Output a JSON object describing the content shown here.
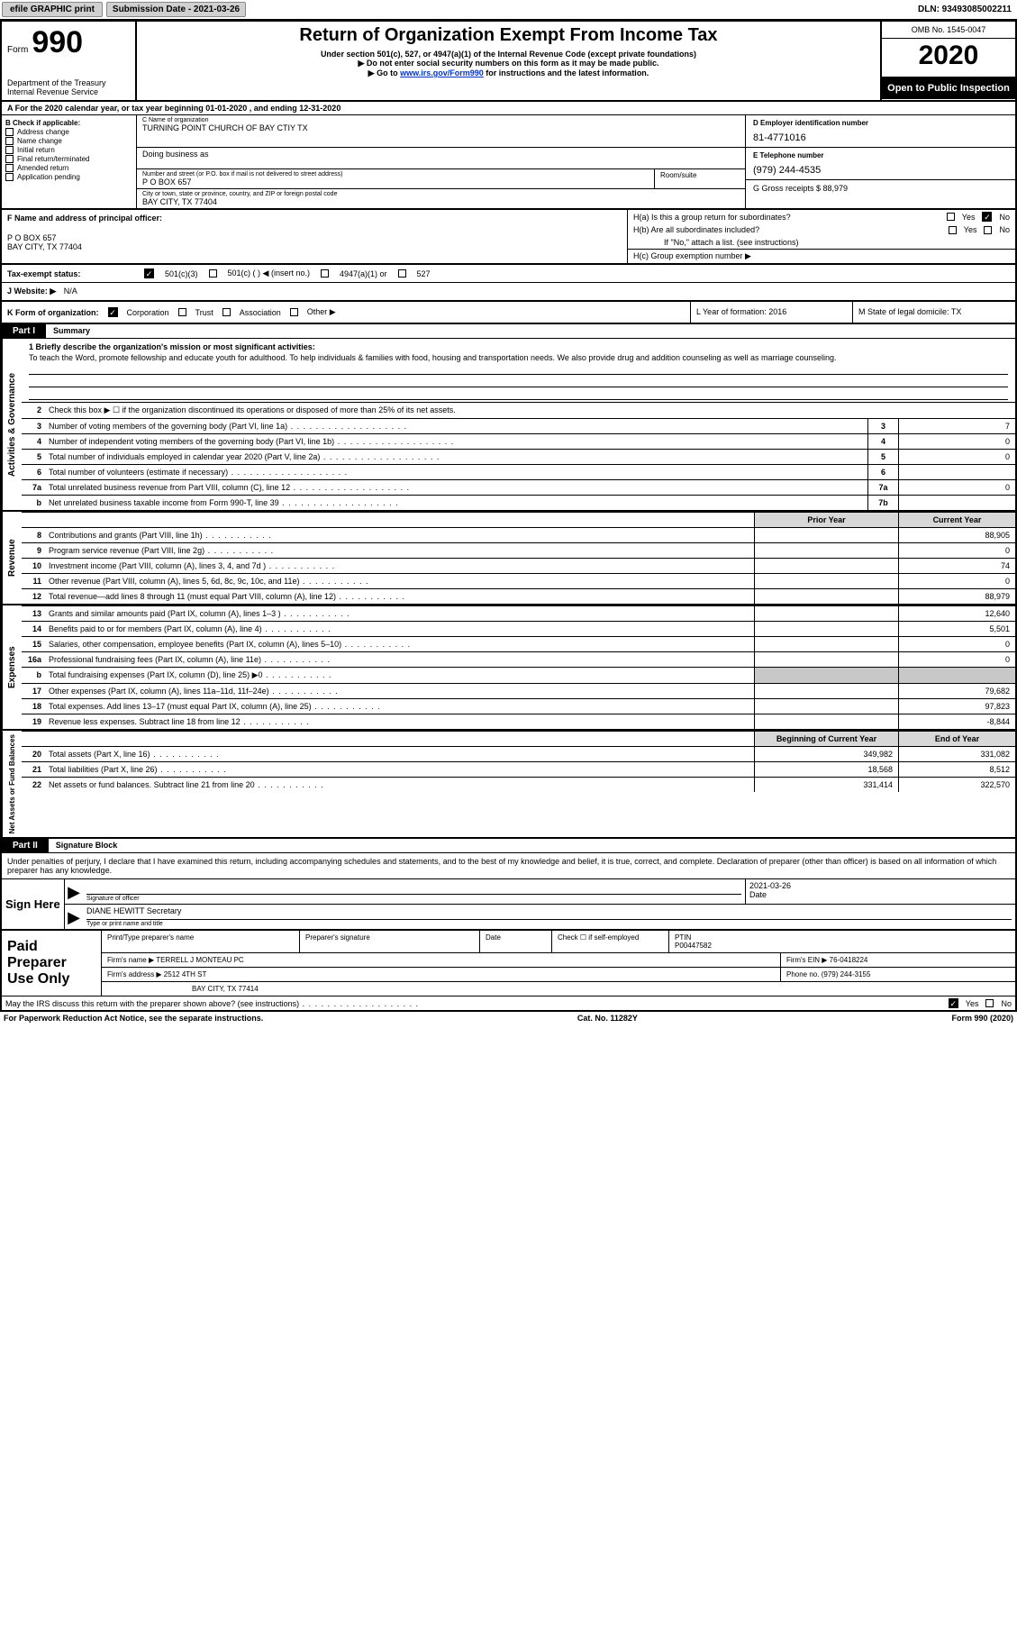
{
  "topbar": {
    "efile": "efile GRAPHIC print",
    "submissionLabel": "Submission Date - 2021-03-26",
    "dln": "DLN: 93493085002211"
  },
  "header": {
    "formWord": "Form",
    "formNum": "990",
    "dept": "Department of the Treasury\nInternal Revenue Service",
    "title": "Return of Organization Exempt From Income Tax",
    "sub1": "Under section 501(c), 527, or 4947(a)(1) of the Internal Revenue Code (except private foundations)",
    "sub2": "▶ Do not enter social security numbers on this form as it may be made public.",
    "sub3pre": "▶ Go to ",
    "sub3link": "www.irs.gov/Form990",
    "sub3post": " for instructions and the latest information.",
    "omb": "OMB No. 1545-0047",
    "year": "2020",
    "open": "Open to Public Inspection"
  },
  "rowA": "A For the 2020 calendar year, or tax year beginning 01-01-2020    , and ending 12-31-2020",
  "colB": {
    "title": "B Check if applicable:",
    "items": [
      "Address change",
      "Name change",
      "Initial return",
      "Final return/terminated",
      "Amended return",
      "Application pending"
    ]
  },
  "org": {
    "nameLabel": "C Name of organization",
    "name": "TURNING POINT CHURCH OF BAY CTIY TX",
    "dbaLabel": "Doing business as",
    "addrLabel": "Number and street (or P.O. box if mail is not delivered to street address)",
    "addr": "P O BOX 657",
    "roomLabel": "Room/suite",
    "cityLabel": "City or town, state or province, country, and ZIP or foreign postal code",
    "city": "BAY CITY, TX  77404"
  },
  "right": {
    "einLabel": "D Employer identification number",
    "ein": "81-4771016",
    "phoneLabel": "E Telephone number",
    "phone": "(979) 244-4535",
    "grossLabel": "G Gross receipts $ 88,979"
  },
  "f": {
    "label": "F  Name and address of principal officer:",
    "line1": "P O BOX 657",
    "line2": "BAY CITY, TX  77404"
  },
  "h": {
    "ha": "H(a)  Is this a group return for subordinates?",
    "hb": "H(b)  Are all subordinates included?",
    "hbNote": "If \"No,\" attach a list. (see instructions)",
    "hc": "H(c)  Group exemption number ▶",
    "yes": "Yes",
    "no": "No"
  },
  "taxRow": {
    "label": "Tax-exempt status:",
    "c501c3": "501(c)(3)",
    "c501c": "501(c) (   ) ◀ (insert no.)",
    "c4947": "4947(a)(1) or",
    "c527": "527"
  },
  "website": {
    "label": "J Website: ▶",
    "val": "N/A"
  },
  "klm": {
    "kLabel": "K Form of organization:",
    "kOpts": [
      "Corporation",
      "Trust",
      "Association",
      "Other ▶"
    ],
    "lLabel": "L Year of formation: 2016",
    "mLabel": "M State of legal domicile: TX"
  },
  "part1": {
    "hdr": "Part I",
    "title": "Summary",
    "missionLabel": "1  Briefly describe the organization's mission or most significant activities:",
    "mission": "To teach the Word, promote fellowship and educate youth for adulthood. To help individuals & families with food, housing and transportation needs. We also provide drug and addition counseling as well as marriage counseling.",
    "line2": "Check this box ▶ ☐  if the organization discontinued its operations or disposed of more than 25% of its net assets.",
    "tabs": {
      "act": "Activities & Governance",
      "rev": "Revenue",
      "exp": "Expenses",
      "net": "Net Assets or Fund Balances"
    },
    "rows_act": [
      {
        "n": "3",
        "d": "Number of voting members of the governing body (Part VI, line 1a)",
        "box": "3",
        "v": "7"
      },
      {
        "n": "4",
        "d": "Number of independent voting members of the governing body (Part VI, line 1b)",
        "box": "4",
        "v": "0"
      },
      {
        "n": "5",
        "d": "Total number of individuals employed in calendar year 2020 (Part V, line 2a)",
        "box": "5",
        "v": "0"
      },
      {
        "n": "6",
        "d": "Total number of volunteers (estimate if necessary)",
        "box": "6",
        "v": ""
      },
      {
        "n": "7a",
        "d": "Total unrelated business revenue from Part VIII, column (C), line 12",
        "box": "7a",
        "v": "0"
      },
      {
        "n": "b",
        "d": "Net unrelated business taxable income from Form 990-T, line 39",
        "box": "7b",
        "v": ""
      }
    ],
    "hdr_py": "Prior Year",
    "hdr_cy": "Current Year",
    "rows_rev": [
      {
        "n": "8",
        "d": "Contributions and grants (Part VIII, line 1h)",
        "cy": "88,905"
      },
      {
        "n": "9",
        "d": "Program service revenue (Part VIII, line 2g)",
        "cy": "0"
      },
      {
        "n": "10",
        "d": "Investment income (Part VIII, column (A), lines 3, 4, and 7d )",
        "cy": "74"
      },
      {
        "n": "11",
        "d": "Other revenue (Part VIII, column (A), lines 5, 6d, 8c, 9c, 10c, and 11e)",
        "cy": "0"
      },
      {
        "n": "12",
        "d": "Total revenue—add lines 8 through 11 (must equal Part VIII, column (A), line 12)",
        "cy": "88,979"
      }
    ],
    "rows_exp": [
      {
        "n": "13",
        "d": "Grants and similar amounts paid (Part IX, column (A), lines 1–3 )",
        "cy": "12,640"
      },
      {
        "n": "14",
        "d": "Benefits paid to or for members (Part IX, column (A), line 4)",
        "cy": "5,501"
      },
      {
        "n": "15",
        "d": "Salaries, other compensation, employee benefits (Part IX, column (A), lines 5–10)",
        "cy": "0"
      },
      {
        "n": "16a",
        "d": "Professional fundraising fees (Part IX, column (A), line 11e)",
        "cy": "0"
      },
      {
        "n": "b",
        "d": "Total fundraising expenses (Part IX, column (D), line 25) ▶0",
        "cy": "",
        "shade": true
      },
      {
        "n": "17",
        "d": "Other expenses (Part IX, column (A), lines 11a–11d, 11f–24e)",
        "cy": "79,682"
      },
      {
        "n": "18",
        "d": "Total expenses. Add lines 13–17 (must equal Part IX, column (A), line 25)",
        "cy": "97,823"
      },
      {
        "n": "19",
        "d": "Revenue less expenses. Subtract line 18 from line 12",
        "cy": "-8,844"
      }
    ],
    "hdr_boy": "Beginning of Current Year",
    "hdr_eoy": "End of Year",
    "rows_net": [
      {
        "n": "20",
        "d": "Total assets (Part X, line 16)",
        "py": "349,982",
        "cy": "331,082"
      },
      {
        "n": "21",
        "d": "Total liabilities (Part X, line 26)",
        "py": "18,568",
        "cy": "8,512"
      },
      {
        "n": "22",
        "d": "Net assets or fund balances. Subtract line 21 from line 20",
        "py": "331,414",
        "cy": "322,570"
      }
    ]
  },
  "part2": {
    "hdr": "Part II",
    "title": "Signature Block",
    "decl": "Under penalties of perjury, I declare that I have examined this return, including accompanying schedules and statements, and to the best of my knowledge and belief, it is true, correct, and complete. Declaration of preparer (other than officer) is based on all information of which preparer has any knowledge.",
    "signHere": "Sign Here",
    "sigOfficer": "Signature of officer",
    "date": "Date",
    "dateVal": "2021-03-26",
    "nameTitle": "DIANE HEWITT Secretary",
    "nameTitleLbl": "Type or print name and title",
    "paid": "Paid Preparer Use Only",
    "pPrint": "Print/Type preparer's name",
    "pSig": "Preparer's signature",
    "pDate": "Date",
    "pCheck": "Check ☐ if self-employed",
    "ptinLbl": "PTIN",
    "ptin": "P00447582",
    "firmName": "Firm's name    ▶ TERRELL J MONTEAU PC",
    "firmEin": "Firm's EIN ▶ 76-0418224",
    "firmAddr": "Firm's address ▶ 2512 4TH ST",
    "firmCity": "BAY CITY, TX  77414",
    "firmPhone": "Phone no. (979) 244-3155",
    "discuss": "May the IRS discuss this return with the preparer shown above? (see instructions)"
  },
  "footer": {
    "pra": "For Paperwork Reduction Act Notice, see the separate instructions.",
    "cat": "Cat. No. 11282Y",
    "form": "Form 990 (2020)"
  }
}
